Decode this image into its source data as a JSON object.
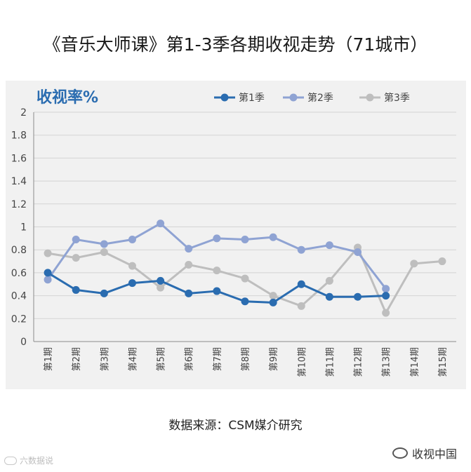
{
  "title": "《音乐大师课》第1-3季各期收视走势（71城市）",
  "source_text": "数据来源：CSM媒介研究",
  "brand_label": "收视中国",
  "watermark_text": "六数据说",
  "icons": {
    "brand": "wechat-icon",
    "watermark": "logo-icon"
  },
  "chart_data": {
    "type": "line",
    "ylabel": "收视率%",
    "ylim": [
      0,
      2
    ],
    "yticks": [
      "0",
      "0.2",
      "0.4",
      "0.6",
      "0.8",
      "1",
      "1.2",
      "1.4",
      "1.6",
      "1.8",
      "2"
    ],
    "grid": true,
    "legend_position": "top",
    "categories": [
      "第1期",
      "第2期",
      "第3期",
      "第4期",
      "第5期",
      "第6期",
      "第7期",
      "第8期",
      "第9期",
      "第10期",
      "第11期",
      "第12期",
      "第13期",
      "第14期",
      "第15期"
    ],
    "series": [
      {
        "name": "第1季",
        "color": "#2a6cb0",
        "values": [
          0.6,
          0.45,
          0.42,
          0.51,
          0.53,
          0.42,
          0.44,
          0.35,
          0.34,
          0.5,
          0.39,
          0.39,
          0.4,
          null,
          null
        ]
      },
      {
        "name": "第2季",
        "color": "#8fa3d3",
        "values": [
          0.54,
          0.89,
          0.85,
          0.89,
          1.03,
          0.81,
          0.9,
          0.89,
          0.91,
          0.8,
          0.84,
          0.78,
          0.46,
          null,
          null
        ]
      },
      {
        "name": "第3季",
        "color": "#bebebe",
        "values": [
          0.77,
          0.73,
          0.78,
          0.66,
          0.47,
          0.67,
          0.62,
          0.55,
          0.4,
          0.31,
          0.53,
          0.82,
          0.25,
          0.68,
          0.7
        ]
      }
    ]
  }
}
